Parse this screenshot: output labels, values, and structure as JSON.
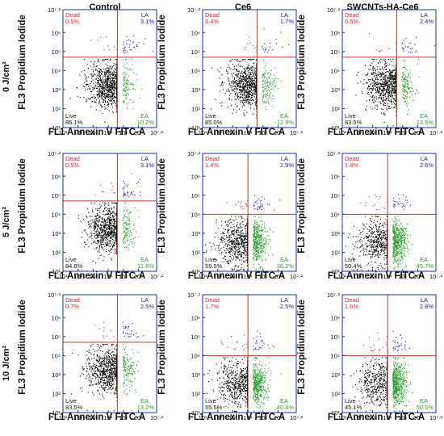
{
  "column_titles": [
    "Control",
    "Ce6",
    "SWCNTs-HA-Ce6"
  ],
  "row_titles": [
    "0 J/cm²",
    "5 J/cm²",
    "10 J/cm²"
  ],
  "colors": {
    "live": "#000000",
    "dead": "#e0282c",
    "late_apoptotic": "#1a1aa8",
    "early_apoptotic": "#2f9e2f",
    "gate_line": "#c0392b",
    "frame": "#1c2f9e"
  },
  "chart_data": [
    {
      "type": "scatter",
      "row": "0 J/cm²",
      "column": "Control",
      "xlabel": "FL1 Annexin V FITC-A",
      "ylabel": "FL3 Propidium Iodide",
      "xscale": "log",
      "yscale": "log",
      "xlim": [
        10,
        15849000
      ],
      "ylim": [
        10,
        15849000
      ],
      "xticks": [
        "10¹",
        "10²",
        "10³",
        "10⁴",
        "10⁵",
        "10⁶",
        "10⁷·²"
      ],
      "yticks": [
        "10¹",
        "10²",
        "10³",
        "10⁴",
        "10⁵",
        "10⁶",
        "10⁷·²"
      ],
      "gate": {
        "x": 40000,
        "y": 50000
      },
      "quadrants": {
        "dead": {
          "label": "Dead",
          "value": "0.5%"
        },
        "late_apoptotic": {
          "label": "LA",
          "value": "3.1%"
        },
        "early_apoptotic": {
          "label": "EA",
          "value": "10.2%"
        },
        "live": {
          "label": "Live",
          "value": "86.1%"
        }
      }
    },
    {
      "type": "scatter",
      "row": "0 J/cm²",
      "column": "Ce6",
      "xlabel": "FL1 Annexin V FITC-A",
      "ylabel": "FL3 Propidium Iodide",
      "xscale": "log",
      "yscale": "log",
      "xlim": [
        10,
        15849000
      ],
      "ylim": [
        10,
        15849000
      ],
      "xticks": [
        "10¹",
        "10²",
        "10³",
        "10⁴",
        "10⁵",
        "10⁶",
        "10⁷·²"
      ],
      "yticks": [
        "10¹",
        "10²",
        "10³",
        "10⁴",
        "10⁵",
        "10⁶",
        "10⁷·²"
      ],
      "gate": {
        "x": 40000,
        "y": 50000
      },
      "quadrants": {
        "dead": {
          "label": "Dead",
          "value": "0.4%"
        },
        "late_apoptotic": {
          "label": "LA",
          "value": "1.7%"
        },
        "early_apoptotic": {
          "label": "EA",
          "value": "12.9%"
        },
        "live": {
          "label": "Live",
          "value": "85.0%"
        }
      }
    },
    {
      "type": "scatter",
      "row": "0 J/cm²",
      "column": "SWCNTs-HA-Ce6",
      "xlabel": "FL1 Annexin V FITC-A",
      "ylabel": "FL3 Propidium Iodide",
      "xscale": "log",
      "yscale": "log",
      "xlim": [
        10,
        15849000
      ],
      "ylim": [
        10,
        15849000
      ],
      "xticks": [
        "10¹",
        "10²",
        "10³",
        "10⁴",
        "10⁵",
        "10⁶",
        "10⁷·²"
      ],
      "yticks": [
        "10¹",
        "10²",
        "10³",
        "10⁴",
        "10⁵",
        "10⁶",
        "10⁷·²"
      ],
      "gate": {
        "x": 40000,
        "y": 50000
      },
      "quadrants": {
        "dead": {
          "label": "Dead",
          "value": "0.5%"
        },
        "late_apoptotic": {
          "label": "LA",
          "value": "2.4%"
        },
        "early_apoptotic": {
          "label": "EA",
          "value": "13.6%"
        },
        "live": {
          "label": "Live",
          "value": "83.5%"
        }
      }
    },
    {
      "type": "scatter",
      "row": "5 J/cm²",
      "column": "Control",
      "xlabel": "FL1 Annexin V FITC-A",
      "ylabel": "FL3 Propidium Iodide",
      "xscale": "log",
      "yscale": "log",
      "xlim": [
        10,
        15849000
      ],
      "ylim": [
        10,
        15849000
      ],
      "xticks": [
        "10¹",
        "10²",
        "10³",
        "10⁴",
        "10⁵",
        "10⁶",
        "10⁷·²"
      ],
      "yticks": [
        "10¹",
        "10²",
        "10³",
        "10⁴",
        "10⁵",
        "10⁶",
        "10⁷·²"
      ],
      "gate": {
        "x": 40000,
        "y": 50000
      },
      "quadrants": {
        "dead": {
          "label": "Dead",
          "value": "0.5%"
        },
        "late_apoptotic": {
          "label": "LA",
          "value": "3.1%"
        },
        "early_apoptotic": {
          "label": "EA",
          "value": "11.6%"
        },
        "live": {
          "label": "Live",
          "value": "84.8%"
        }
      }
    },
    {
      "type": "scatter",
      "row": "5 J/cm²",
      "column": "Ce6",
      "xlabel": "FL1 Annexin V FITC-A",
      "ylabel": "FL3 Propidium Iodide",
      "xscale": "log",
      "yscale": "log",
      "xlim": [
        10,
        15849000
      ],
      "ylim": [
        10,
        15849000
      ],
      "xticks": [
        "10¹",
        "10²",
        "10³",
        "10⁴",
        "10⁵",
        "10⁶",
        "10⁷·²"
      ],
      "yticks": [
        "10¹",
        "10²",
        "10³",
        "10⁴",
        "10⁵",
        "10⁶",
        "10⁷·²"
      ],
      "gate": {
        "x": 10000,
        "y": 10000
      },
      "quadrants": {
        "dead": {
          "label": "Dead",
          "value": "1.4%"
        },
        "late_apoptotic": {
          "label": "LA",
          "value": "2.9%"
        },
        "early_apoptotic": {
          "label": "EA",
          "value": "36.2%"
        },
        "live": {
          "label": "Live",
          "value": "59.5%"
        }
      }
    },
    {
      "type": "scatter",
      "row": "5 J/cm²",
      "column": "SWCNTs-HA-Ce6",
      "xlabel": "FL1 Annexin V FITC-A",
      "ylabel": "FL3 Propidium Iodide",
      "xscale": "log",
      "yscale": "log",
      "xlim": [
        10,
        15849000
      ],
      "ylim": [
        10,
        15849000
      ],
      "xticks": [
        "10¹",
        "10²",
        "10³",
        "10⁴",
        "10⁵",
        "10⁶",
        "10⁷·²"
      ],
      "yticks": [
        "10¹",
        "10²",
        "10³",
        "10⁴",
        "10⁵",
        "10⁶",
        "10⁷·²"
      ],
      "gate": {
        "x": 10000,
        "y": 10000
      },
      "quadrants": {
        "dead": {
          "label": "Dead",
          "value": "1.4%"
        },
        "late_apoptotic": {
          "label": "LA",
          "value": "2.6%"
        },
        "early_apoptotic": {
          "label": "EA",
          "value": "45.7%"
        },
        "live": {
          "label": "Live",
          "value": "50.4%"
        }
      }
    },
    {
      "type": "scatter",
      "row": "10 J/cm²",
      "column": "Control",
      "xlabel": "FL1 Annexin V FITC-A",
      "ylabel": "FL3 Propidium Iodide",
      "xscale": "log",
      "yscale": "log",
      "xlim": [
        10,
        15849000
      ],
      "ylim": [
        10,
        15849000
      ],
      "xticks": [
        "10¹",
        "10²",
        "10³",
        "10⁴",
        "10⁵",
        "10⁶",
        "10⁷·²"
      ],
      "yticks": [
        "10¹",
        "10²",
        "10³",
        "10⁴",
        "10⁵",
        "10⁶",
        "10⁷·²"
      ],
      "gate": {
        "x": 40000,
        "y": 50000
      },
      "quadrants": {
        "dead": {
          "label": "Dead",
          "value": "0.7%"
        },
        "late_apoptotic": {
          "label": "LA",
          "value": "2.5%"
        },
        "early_apoptotic": {
          "label": "EA",
          "value": "13.2%"
        },
        "live": {
          "label": "Live",
          "value": "83.5%"
        }
      }
    },
    {
      "type": "scatter",
      "row": "10 J/cm²",
      "column": "Ce6",
      "xlabel": "FL1 Annexin V FITC-A",
      "ylabel": "FL3 Propidium Iodide",
      "xscale": "log",
      "yscale": "log",
      "xlim": [
        10,
        15849000
      ],
      "ylim": [
        10,
        15849000
      ],
      "xticks": [
        "10¹",
        "10²",
        "10³",
        "10⁴",
        "10⁵",
        "10⁶",
        "10⁷·²"
      ],
      "yticks": [
        "10¹",
        "10²",
        "10³",
        "10⁴",
        "10⁵",
        "10⁶",
        "10⁷·²"
      ],
      "gate": {
        "x": 10000,
        "y": 10000
      },
      "quadrants": {
        "dead": {
          "label": "Dead",
          "value": "1.7%"
        },
        "late_apoptotic": {
          "label": "LA",
          "value": "2.5%"
        },
        "early_apoptotic": {
          "label": "EA",
          "value": "40.4%"
        },
        "live": {
          "label": "Live",
          "value": "55.5%"
        }
      }
    },
    {
      "type": "scatter",
      "row": "10 J/cm²",
      "column": "SWCNTs-HA-Ce6",
      "xlabel": "FL1 Annexin V FITC-A",
      "ylabel": "FL3 Propidium Iodide",
      "xscale": "log",
      "yscale": "log",
      "xlim": [
        10,
        15849000
      ],
      "ylim": [
        10,
        15849000
      ],
      "xticks": [
        "10¹",
        "10²",
        "10³",
        "10⁴",
        "10⁵",
        "10⁶",
        "10⁷·²"
      ],
      "yticks": [
        "10¹",
        "10²",
        "10³",
        "10⁴",
        "10⁵",
        "10⁶",
        "10⁷·²"
      ],
      "gate": {
        "x": 10000,
        "y": 10000
      },
      "quadrants": {
        "dead": {
          "label": "Dead",
          "value": "1.6%"
        },
        "late_apoptotic": {
          "label": "LA",
          "value": "2.8%"
        },
        "early_apoptotic": {
          "label": "EA",
          "value": "50.5%"
        },
        "live": {
          "label": "Live",
          "value": "45.1%"
        }
      }
    }
  ]
}
